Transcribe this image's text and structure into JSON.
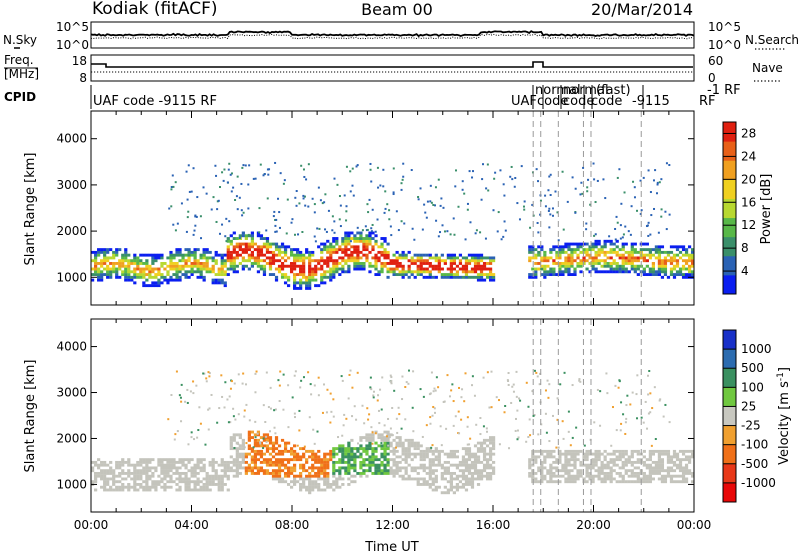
{
  "header": {
    "station": "Kodiak (fitACF)",
    "beam": "Beam 00",
    "date": "20/Mar/2014"
  },
  "nsky_panel": {
    "left_label": "N.Sky",
    "right_label": "N.Search",
    "left_ticks": [
      "10^5",
      "10^0"
    ],
    "right_ticks": [
      "10^5",
      "10^0"
    ]
  },
  "freq_panel": {
    "left_label_line1": "Freq.",
    "left_label_line2": "[MHz]",
    "right_label": "Nave",
    "left_ticks": [
      "18",
      "8"
    ],
    "right_ticks": [
      "60",
      "0"
    ]
  },
  "cpid": {
    "label": "CPID",
    "segments": [
      {
        "text": "UAF code -9115 RF"
      },
      {
        "text": "UAF"
      },
      {
        "text": "normal"
      },
      {
        "text": "code"
      },
      {
        "text": "code"
      },
      {
        "text": "normal"
      },
      {
        "text": "code"
      },
      {
        "text": "(fast)"
      },
      {
        "text": "-9115"
      },
      {
        "text": "RF"
      },
      {
        "text": "-1 RF"
      }
    ]
  },
  "chart_data": [
    {
      "type": "heatmap",
      "title": "",
      "xlabel": "",
      "ylabel": "Slant Range [km]",
      "x_ticks": [
        "00:00",
        "04:00",
        "08:00",
        "12:00",
        "16:00",
        "20:00",
        "00:00"
      ],
      "y_ticks": [
        1000,
        2000,
        3000,
        4000
      ],
      "ylim": [
        400,
        4600
      ],
      "xlim_hours": [
        0,
        24
      ],
      "colorbar": {
        "label": "Power [dB]",
        "ticks": [
          4,
          8,
          12,
          16,
          20,
          24,
          28
        ],
        "range": [
          0,
          30
        ],
        "colors": [
          "#0a1ef0",
          "#2a62b4",
          "#3a8f6a",
          "#58b848",
          "#b8d830",
          "#f0d020",
          "#f0a020",
          "#e86018",
          "#e02010"
        ]
      },
      "dominant_echoes": [
        {
          "time_start": "00:00",
          "time_end": "05:30",
          "range_km": [
            900,
            1800
          ],
          "power_db": "4-16"
        },
        {
          "time_start": "05:30",
          "time_end": "16:00",
          "range_km": [
            900,
            2000
          ],
          "power_db": "8-28"
        },
        {
          "time_start": "12:00",
          "time_end": "16:00",
          "range_km": [
            1000,
            1500
          ],
          "power_db": "16-28"
        },
        {
          "time_start": "17:30",
          "time_end": "24:00",
          "range_km": [
            1000,
            1800
          ],
          "power_db": "4-20"
        }
      ]
    },
    {
      "type": "heatmap",
      "title": "",
      "xlabel": "Time UT",
      "ylabel": "Slant Range [km]",
      "x_ticks": [
        "00:00",
        "04:00",
        "08:00",
        "12:00",
        "16:00",
        "20:00",
        "00:00"
      ],
      "y_ticks": [
        1000,
        2000,
        3000,
        4000
      ],
      "ylim": [
        400,
        4600
      ],
      "xlim_hours": [
        0,
        24
      ],
      "colorbar": {
        "label": "Velocity [m s^-1]",
        "label_display": "Velocity  [m s",
        "label_superscript": "-1",
        "label_close": "]",
        "ticks": [
          "1000",
          "500",
          "100",
          "25",
          "-25",
          "-100",
          "-500",
          "-1000"
        ],
        "colors": [
          "#1830c8",
          "#2c6cb0",
          "#3a9060",
          "#70c840",
          "#c8c8c0",
          "#f0a030",
          "#f07018",
          "#e83818",
          "#e80808"
        ]
      },
      "dominant_echoes": [
        {
          "time_start": "00:00",
          "time_end": "06:00",
          "range_km": [
            900,
            1800
          ],
          "velocity": "ground scatter (~0)"
        },
        {
          "time_start": "06:00",
          "time_end": "10:00",
          "range_km": [
            1200,
            2100
          ],
          "velocity": "-100 to -500"
        },
        {
          "time_start": "10:00",
          "time_end": "12:00",
          "range_km": [
            1200,
            1800
          ],
          "velocity": "100 to 500"
        },
        {
          "time_start": "12:00",
          "time_end": "24:00",
          "range_km": [
            1000,
            2300
          ],
          "velocity": "ground scatter (~0)"
        }
      ]
    }
  ]
}
